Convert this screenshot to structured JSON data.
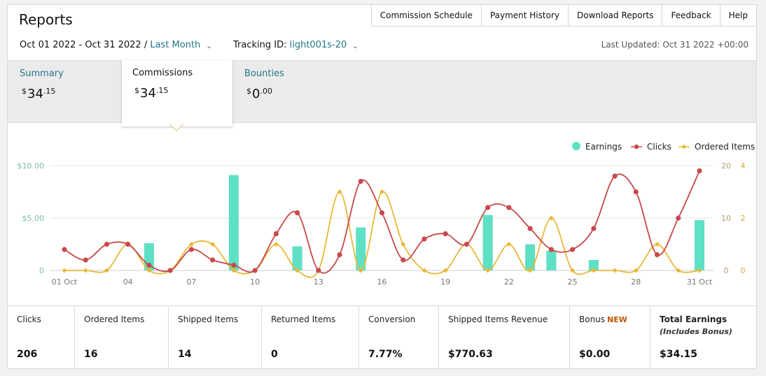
{
  "page": {
    "title": "Reports"
  },
  "topnav": [
    "Commission Schedule",
    "Payment History",
    "Download Reports",
    "Feedback",
    "Help"
  ],
  "filters": {
    "date_range": "Oct 01 2022 - Oct 31 2022 /",
    "period_link": "Last Month",
    "tracking_label": "Tracking ID:",
    "tracking_id": "light001s-20",
    "last_updated": "Last Updated: Oct 31 2022 +00:00"
  },
  "tabs": [
    {
      "label": "Summary",
      "currency": "$",
      "whole": "34",
      "cents": ".15"
    },
    {
      "label": "Commissions",
      "currency": "$",
      "whole": "34",
      "cents": ".15"
    },
    {
      "label": "Bounties",
      "currency": "$",
      "whole": "0",
      "cents": ".00"
    }
  ],
  "legend": [
    "Earnings",
    "Clicks",
    "Ordered Items"
  ],
  "colors": {
    "earnings": "#5ee0c4",
    "clicks": "#c9484a",
    "ordered": "#e8b839",
    "link": "#21778a",
    "new": "#c45500"
  },
  "chart_data": {
    "type": "bar+line",
    "x": [
      "Oct 01",
      "Oct 02",
      "Oct 03",
      "Oct 04",
      "Oct 05",
      "Oct 06",
      "Oct 07",
      "Oct 08",
      "Oct 09",
      "Oct 10",
      "Oct 11",
      "Oct 12",
      "Oct 13",
      "Oct 14",
      "Oct 15",
      "Oct 16",
      "Oct 17",
      "Oct 18",
      "Oct 19",
      "Oct 20",
      "Oct 21",
      "Oct 22",
      "Oct 23",
      "Oct 24",
      "Oct 25",
      "Oct 26",
      "Oct 27",
      "Oct 28",
      "Oct 29",
      "Oct 30",
      "Oct 31"
    ],
    "tick_labels": [
      "01 Oct",
      "04",
      "07",
      "10",
      "13",
      "16",
      "19",
      "22",
      "25",
      "28",
      "31 Oct"
    ],
    "tick_positions": [
      0,
      3,
      6,
      9,
      12,
      15,
      18,
      21,
      24,
      27,
      30
    ],
    "left_axis": {
      "ticks": [
        "$10.00",
        "$5.00",
        "0"
      ],
      "ylim": [
        0,
        10
      ]
    },
    "right_axis_clicks": {
      "ticks": [
        "20",
        "10",
        "0"
      ],
      "ylim": [
        0,
        20
      ]
    },
    "right_axis_ordered": {
      "ticks": [
        "4",
        "2",
        "0"
      ],
      "ylim": [
        0,
        4
      ]
    },
    "series": [
      {
        "name": "Earnings",
        "type": "bar",
        "axis": "left",
        "values": [
          0,
          0,
          0,
          0,
          2.6,
          0,
          0,
          0,
          9.1,
          0,
          0,
          2.3,
          0,
          0,
          4.1,
          0,
          0,
          0,
          0,
          0,
          5.3,
          0,
          2.5,
          1.9,
          0,
          1.0,
          0,
          0,
          0,
          0,
          4.8
        ]
      },
      {
        "name": "Clicks",
        "type": "line",
        "axis": "right_clicks",
        "values": [
          4,
          2,
          5,
          5,
          1,
          0,
          4,
          2,
          1,
          0,
          7,
          11,
          0,
          3,
          17,
          11,
          2,
          6,
          7,
          5,
          12,
          12,
          8,
          4,
          4,
          8,
          18,
          15,
          3,
          10,
          19
        ]
      },
      {
        "name": "Ordered Items",
        "type": "line",
        "axis": "right_ordered",
        "values": [
          0,
          0,
          0,
          1,
          0,
          0,
          1,
          1,
          0,
          0,
          1,
          0,
          0,
          3,
          0,
          3,
          1,
          0,
          0,
          1,
          0,
          1,
          0,
          2,
          0,
          0,
          0,
          0,
          1,
          0,
          0
        ]
      }
    ],
    "grid": true
  },
  "stats": [
    {
      "label": "Clicks",
      "value": "206"
    },
    {
      "label": "Ordered Items",
      "value": "16"
    },
    {
      "label": "Shipped Items",
      "value": "14"
    },
    {
      "label": "Returned Items",
      "value": "0"
    },
    {
      "label": "Conversion",
      "value": "7.77%"
    },
    {
      "label": "Shipped Items Revenue",
      "value": "$770.63"
    },
    {
      "label": "Bonus",
      "badge": "NEW",
      "value": "$0.00"
    },
    {
      "label": "Total Earnings",
      "note": "(Includes Bonus)",
      "value": "$34.15"
    }
  ]
}
